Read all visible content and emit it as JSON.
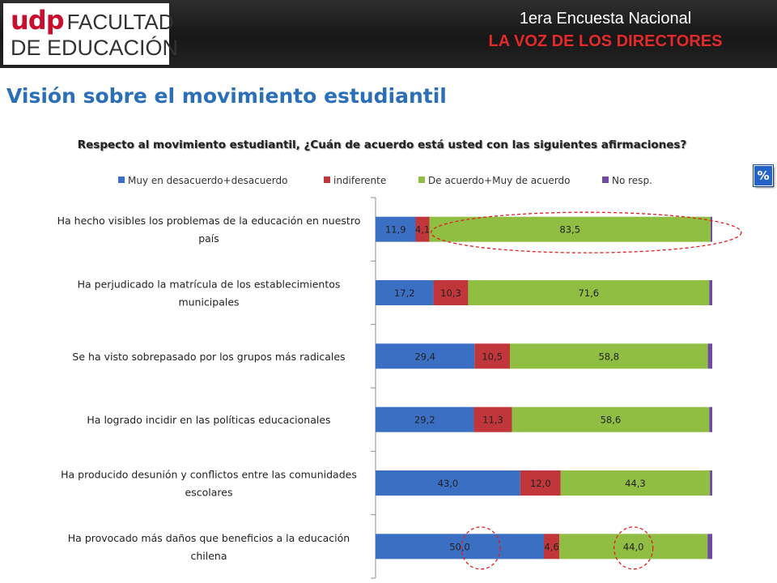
{
  "header": {
    "logo_brand": "udp",
    "logo_line1": "FACULTAD",
    "logo_line2": "DE EDUCACIÓN",
    "survey_name": "1era Encuesta Nacional",
    "survey_subtitle": "LA VOZ DE LOS DIRECTORES"
  },
  "page_title": "Visión sobre el movimiento estudiantil",
  "badge": "%",
  "colors": {
    "disagree": "#3a6fc4",
    "indifferent": "#c0363a",
    "agree": "#8fbe43",
    "no_resp": "#6f4a9e",
    "highlight": "#e01f1f"
  },
  "chart_data": {
    "type": "bar",
    "orientation": "horizontal",
    "stacked": true,
    "title": "Respecto al movimiento estudiantil, ¿Cuán de acuerdo está usted con las siguientes afirmaciones?",
    "legend_position": "top",
    "xlim": [
      0,
      100
    ],
    "categories": [
      [
        "Ha hecho visibles los problemas de la educación en nuestro",
        "país"
      ],
      [
        "Ha perjudicado la matrícula de los establecimientos",
        "municipales"
      ],
      [
        "Se ha visto sobrepasado por los grupos más radicales"
      ],
      [
        "Ha logrado incidir en las políticas educacionales"
      ],
      [
        "Ha producido desunión y conflictos entre las comunidades",
        "escolares"
      ],
      [
        "Ha provocado más daños que beneficios a la educación",
        "chilena"
      ]
    ],
    "series": [
      {
        "name": "Muy en desacuerdo+desacuerdo",
        "values": [
          11.9,
          17.2,
          29.4,
          29.2,
          43.0,
          50.0
        ],
        "labels": [
          "11,9",
          "17,2",
          "29,4",
          "29,2",
          "43,0",
          "50,0"
        ]
      },
      {
        "name": "indiferente",
        "values": [
          4.1,
          10.3,
          10.5,
          11.3,
          12.0,
          4.6
        ],
        "labels": [
          "4,1",
          "10,3",
          "10,5",
          "11,3",
          "12,0",
          "4,6"
        ]
      },
      {
        "name": "De acuerdo+Muy de acuerdo",
        "values": [
          83.5,
          71.6,
          58.8,
          58.6,
          44.3,
          44.0
        ],
        "labels": [
          "83,5",
          "71,6",
          "58,8",
          "58,6",
          "44,3",
          "44,0"
        ]
      },
      {
        "name": "No resp.",
        "values": [
          0.5,
          0.9,
          1.3,
          0.9,
          0.7,
          1.4
        ],
        "labels": [
          "",
          "",
          "",
          "",
          "",
          ""
        ]
      }
    ]
  }
}
